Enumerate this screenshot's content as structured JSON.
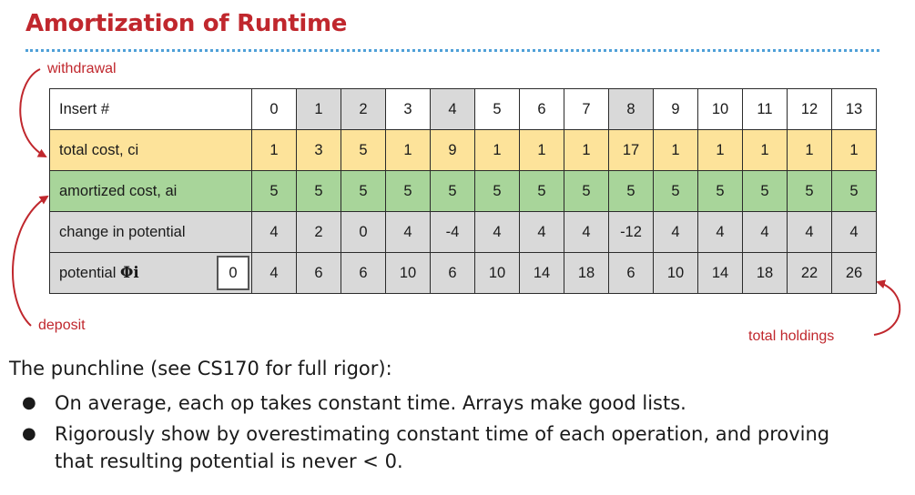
{
  "title": "Amortization of Runtime",
  "callouts": {
    "withdrawal": "withdrawal",
    "deposit": "deposit",
    "total_holdings": "total holdings"
  },
  "colors": {
    "title": "#c0272d",
    "rule": "#4fa0d8",
    "total_cost_row": "#fde39a",
    "amortized_row": "#a8d59a",
    "gray_cell": "#d9d9d9",
    "white_cell": "#ffffff"
  },
  "table": {
    "header_label": "Insert #",
    "inserts": [
      "0",
      "1",
      "2",
      "3",
      "4",
      "5",
      "6",
      "7",
      "8",
      "9",
      "10",
      "11",
      "12",
      "13"
    ],
    "shaded_header": [
      false,
      true,
      true,
      false,
      true,
      false,
      false,
      false,
      true,
      false,
      false,
      false,
      false,
      false
    ],
    "rows": [
      {
        "label": "total cost, ci",
        "values": [
          "1",
          "3",
          "5",
          "1",
          "9",
          "1",
          "1",
          "1",
          "17",
          "1",
          "1",
          "1",
          "1",
          "1"
        ]
      },
      {
        "label": "amortized cost, ai",
        "values": [
          "5",
          "5",
          "5",
          "5",
          "5",
          "5",
          "5",
          "5",
          "5",
          "5",
          "5",
          "5",
          "5",
          "5"
        ]
      },
      {
        "label": "change in potential",
        "values": [
          "4",
          "2",
          "0",
          "4",
          "-4",
          "4",
          "4",
          "4",
          "-12",
          "4",
          "4",
          "4",
          "4",
          "4"
        ]
      },
      {
        "label_prefix": "potential ",
        "label_symbol": "Φi",
        "initial": "0",
        "values": [
          "4",
          "6",
          "6",
          "10",
          "6",
          "10",
          "14",
          "18",
          "6",
          "10",
          "14",
          "18",
          "22",
          "26"
        ]
      }
    ]
  },
  "punchline": "The punchline (see CS170 for full rigor):",
  "bullets": [
    "On average, each op takes constant time. Arrays make good lists.",
    "Rigorously show by overestimating constant time of each operation, and proving that resulting potential is never < 0."
  ],
  "bullet_glyph": "●"
}
